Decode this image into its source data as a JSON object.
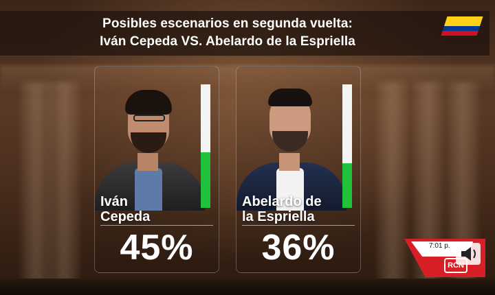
{
  "title": {
    "line1": "Posibles escenarios en segunda vuelta:",
    "line2": "Iván Cepeda VS. Abelardo de la Espriella"
  },
  "flag_colors": [
    "#FCD116",
    "#003893",
    "#CE1126"
  ],
  "candidates": [
    {
      "name_line1": "Iván",
      "name_line2": "Cepeda",
      "percent_label": "45%",
      "percent_value": 45,
      "gauge_fill": 0.45,
      "gauge_color": "#1fc23a"
    },
    {
      "name_line1": "Abelardo de",
      "name_line2": "la Espriella",
      "percent_label": "36%",
      "percent_value": 36,
      "gauge_fill": 0.36,
      "gauge_color": "#1fc23a"
    }
  ],
  "broadcaster": {
    "time": "7:01 p.",
    "logo": "RCN",
    "accent": "#d91f26"
  },
  "icons": {
    "speaker": "speaker-icon",
    "flag": "colombia-flag-icon"
  }
}
